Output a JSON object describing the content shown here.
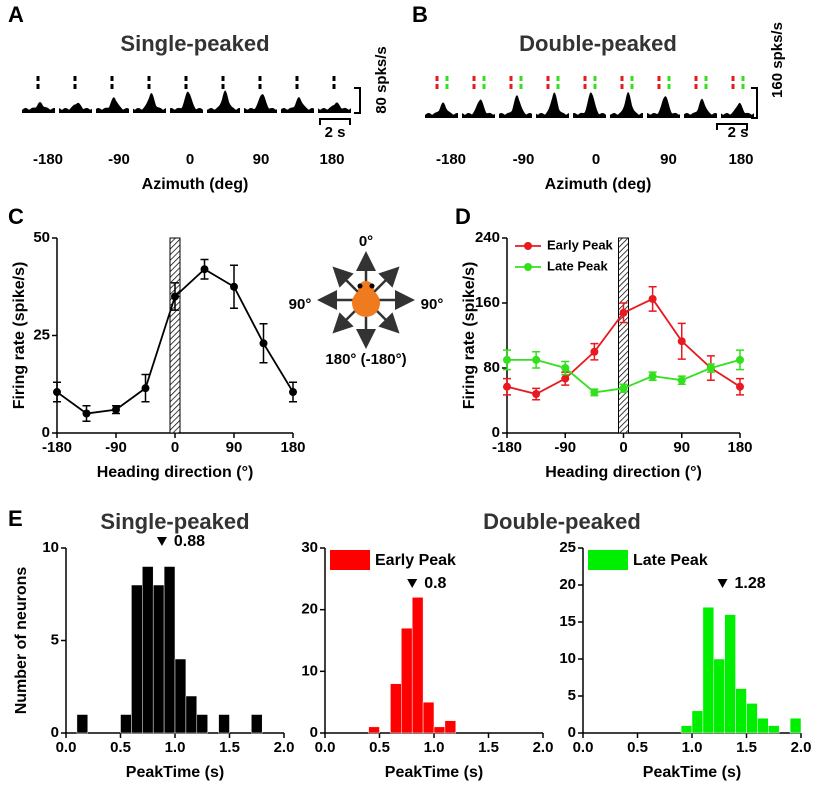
{
  "panel_a": {
    "label": "A",
    "title": "Single-peaked",
    "azimuths": [
      -180,
      -90,
      0,
      90,
      180
    ],
    "xlabel": "Azimuth (deg)",
    "scale_rate": "80 spks/s",
    "scale_time": "2 s"
  },
  "panel_b": {
    "label": "B",
    "title": "Double-peaked",
    "azimuths": [
      -180,
      -90,
      0,
      90,
      180
    ],
    "xlabel": "Azimuth (deg)",
    "scale_rate": "160 spks/s",
    "scale_time": "2 s"
  },
  "compass": {
    "up": "0°",
    "left": "90°",
    "right": "90°",
    "down": "180° (-180°)"
  },
  "panel_e": {
    "label": "E",
    "title": "Double-peaked"
  },
  "chart_data": [
    {
      "type": "line",
      "panel": "C",
      "x": [
        -180,
        -135,
        -90,
        -45,
        0,
        45,
        90,
        135,
        180
      ],
      "series": [
        {
          "color": "#000000",
          "values": [
            10.5,
            5,
            6,
            11.5,
            35,
            42,
            37.5,
            23,
            10.5
          ],
          "errors": [
            2.5,
            2,
            1,
            3.5,
            3.5,
            2.5,
            5.5,
            5,
            2.5
          ]
        }
      ],
      "xlim": [
        -180,
        180
      ],
      "ylim": [
        0,
        50
      ],
      "xticks": [
        -180,
        -90,
        0,
        90,
        180
      ],
      "yticks": [
        0,
        25,
        50
      ],
      "xlabel": "Heading direction (°)",
      "ylabel": "Firing rate (spike/s)"
    },
    {
      "type": "line",
      "panel": "D",
      "x": [
        -180,
        -135,
        -90,
        -45,
        0,
        45,
        90,
        135,
        180
      ],
      "series": [
        {
          "name": "Early Peak",
          "color": "#e8191f",
          "values": [
            57,
            48,
            67,
            100,
            148,
            165,
            113,
            80,
            57
          ],
          "errors": [
            10,
            7,
            8,
            10,
            12,
            15,
            22,
            15,
            10
          ]
        },
        {
          "name": "Late Peak",
          "color": "#33e01e",
          "values": [
            90,
            90,
            80,
            50,
            55,
            70,
            65,
            80,
            90
          ],
          "errors": [
            12,
            10,
            8,
            4,
            5,
            5,
            5,
            5,
            12
          ]
        }
      ],
      "xlim": [
        -180,
        180
      ],
      "ylim": [
        0,
        240
      ],
      "xticks": [
        -180,
        -90,
        0,
        90,
        180
      ],
      "yticks": [
        0,
        80,
        160,
        240
      ],
      "xlabel": "Heading direction (°)",
      "ylabel": "Firing rate (spike/s)",
      "legend": "upper left"
    },
    {
      "type": "histogram",
      "title": "Single-peaked",
      "bins": [
        0,
        0.1,
        0.2,
        0.3,
        0.4,
        0.5,
        0.6,
        0.7,
        0.8,
        0.9,
        1.0,
        1.1,
        1.2,
        1.3,
        1.4,
        1.5,
        1.6,
        1.7,
        1.8,
        1.9,
        2.0
      ],
      "values": [
        0,
        1,
        0,
        0,
        0,
        1,
        8,
        9,
        8,
        9,
        4,
        2,
        1,
        0,
        1,
        0,
        0,
        1,
        0,
        0
      ],
      "color": "#000000",
      "xlim": [
        0,
        2
      ],
      "ylim": [
        0,
        10
      ],
      "xticks": [
        {
          "value": 0,
          "label": "0.0"
        },
        0.5,
        {
          "value": 1,
          "label": "1.0"
        },
        1.5,
        {
          "value": 2,
          "label": "2.0"
        }
      ],
      "yticks": [
        0,
        5,
        10
      ],
      "xlabel": "PeakTime (s)",
      "ylabel": "Number of neurons",
      "marker": 0.88
    },
    {
      "type": "histogram",
      "bins": [
        0,
        0.1,
        0.2,
        0.3,
        0.4,
        0.5,
        0.6,
        0.7,
        0.8,
        0.9,
        1.0,
        1.1,
        1.2,
        1.3,
        1.4,
        1.5,
        1.6,
        1.7,
        1.8,
        1.9,
        2.0
      ],
      "series": [
        {
          "name": "Early Peak",
          "color": "#ff0000",
          "values": [
            0,
            0,
            0,
            0,
            1,
            0,
            8,
            17,
            22,
            5,
            1,
            2,
            0,
            0,
            0,
            0,
            0,
            0,
            0,
            0
          ]
        }
      ],
      "xlim": [
        0,
        2
      ],
      "ylim": [
        0,
        30
      ],
      "xticks": [
        {
          "value": 0,
          "label": "0.0"
        },
        0.5,
        {
          "value": 1,
          "label": "1.0"
        },
        1.5,
        {
          "value": 2,
          "label": "2.0"
        }
      ],
      "yticks": [
        0,
        10,
        20,
        30
      ],
      "xlabel": "PeakTime (s)",
      "marker": 0.8,
      "legend": "upper left"
    },
    {
      "type": "histogram",
      "bins": [
        0,
        0.1,
        0.2,
        0.3,
        0.4,
        0.5,
        0.6,
        0.7,
        0.8,
        0.9,
        1.0,
        1.1,
        1.2,
        1.3,
        1.4,
        1.5,
        1.6,
        1.7,
        1.8,
        1.9,
        2.0
      ],
      "series": [
        {
          "name": "Late Peak",
          "color": "#00ee00",
          "values": [
            0,
            0,
            0,
            0,
            0,
            0,
            0,
            0,
            0,
            1,
            3,
            17,
            10,
            16,
            6,
            4,
            2,
            1,
            0,
            2
          ]
        }
      ],
      "xlim": [
        0,
        2
      ],
      "ylim": [
        0,
        25
      ],
      "xticks": [
        {
          "value": 0,
          "label": "0.0"
        },
        0.5,
        {
          "value": 1,
          "label": "1.0"
        },
        1.5,
        {
          "value": 2,
          "label": "2.0"
        }
      ],
      "yticks": [
        0,
        5,
        10,
        15,
        20,
        25
      ],
      "xlabel": "PeakTime (s)",
      "marker": 1.28,
      "legend": "upper left"
    }
  ]
}
